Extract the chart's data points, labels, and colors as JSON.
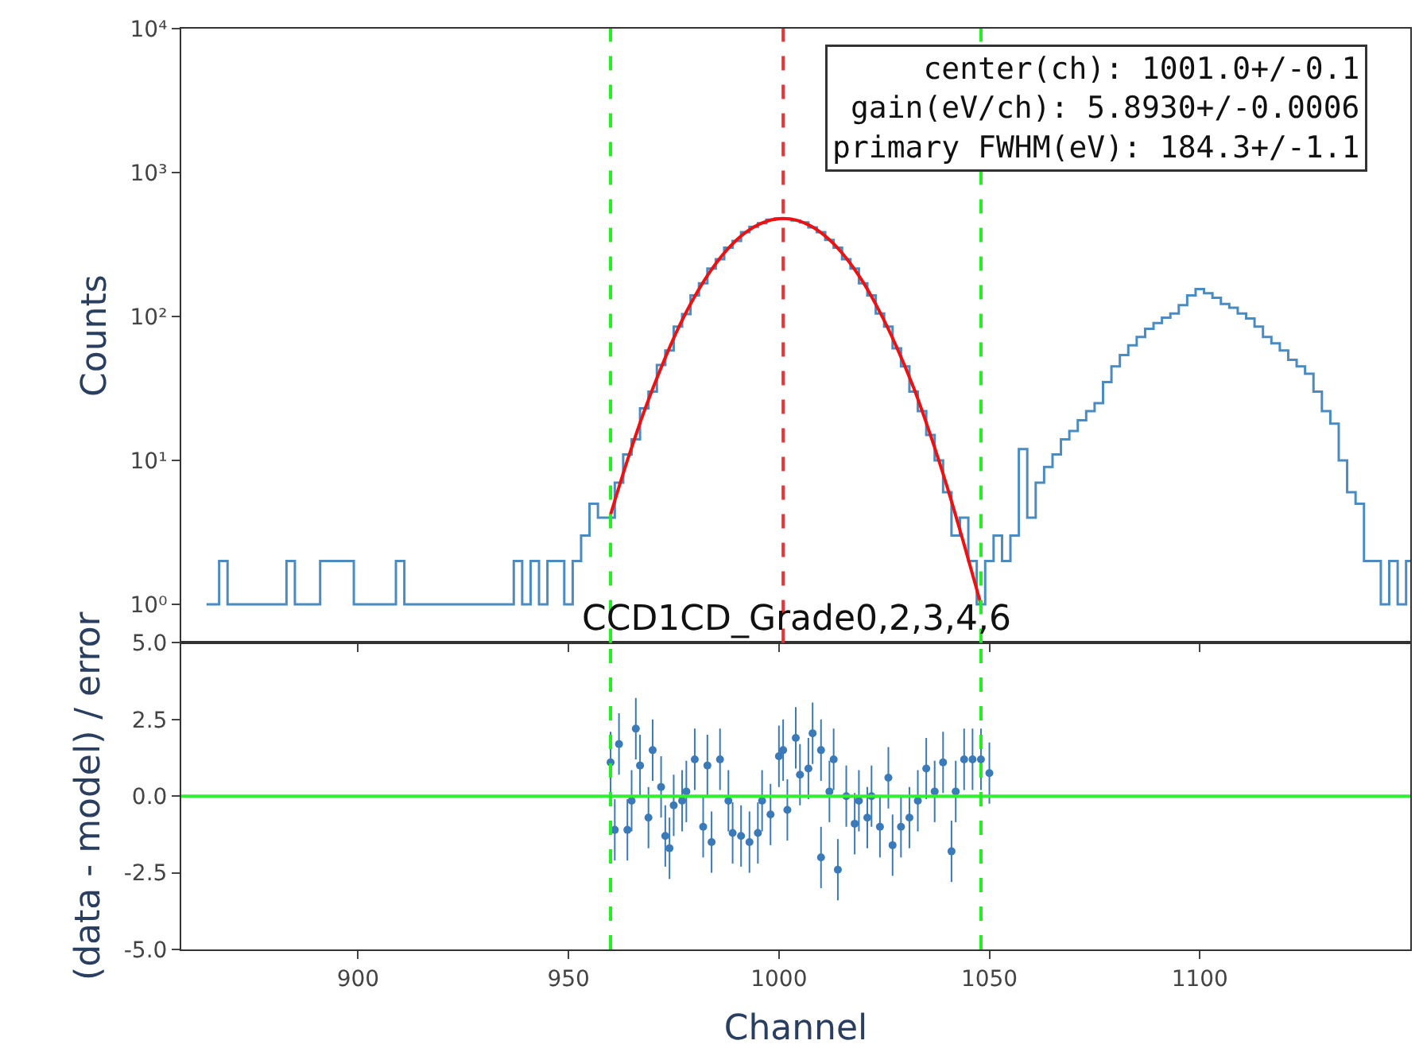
{
  "chart_data": [
    {
      "type": "step",
      "ylabel": "Counts",
      "log": "y",
      "tick_labels": "y",
      "grid": false,
      "xlim": [
        858,
        1150
      ],
      "xticks": [
        900,
        950,
        1000,
        1050,
        1100
      ],
      "ylim": [
        0.54,
        10000
      ],
      "yticks": [
        {
          "value": 1,
          "label": "10⁰"
        },
        {
          "value": 10,
          "label": "10¹"
        },
        {
          "value": 100,
          "label": "10²"
        },
        {
          "value": 1000,
          "label": "10³"
        },
        {
          "value": 10000,
          "label": "10⁴"
        }
      ],
      "annotations": [
        "center(ch): 1001.0+/-0.1\ngain(eV/ch): 5.8930+/-0.0006\nprimary FWHM(eV): 184.3+/-1.1"
      ],
      "ref_lines": [
        {
          "axis": "x",
          "value": 960,
          "color": "#22ee22",
          "line_style": "dashed"
        },
        {
          "axis": "x",
          "value": 1048,
          "color": "#22ee22",
          "line_style": "dashed"
        },
        {
          "axis": "x",
          "value": 1001,
          "color": "#ee3333",
          "line_style": "dashed"
        }
      ],
      "series": [
        {
          "type": "step",
          "color": "#4a8bc2",
          "x": [
            864,
            866,
            868,
            870,
            874,
            876,
            880,
            882,
            884,
            886,
            896,
            902,
            904,
            906,
            908,
            910,
            912,
            914,
            916,
            920,
            922,
            926,
            934,
            936,
            938,
            940,
            942,
            944,
            946,
            948,
            950,
            952,
            954,
            956,
            958,
            960,
            962,
            964,
            966,
            968,
            970,
            972,
            974,
            976,
            978,
            980,
            982,
            984,
            986,
            988,
            990,
            992,
            994,
            996,
            998,
            1000,
            1002,
            1004,
            1006,
            1008,
            1010,
            1012,
            1014,
            1016,
            1018,
            1020,
            1022,
            1024,
            1026,
            1028,
            1030,
            1032,
            1034,
            1036,
            1038,
            1040,
            1042,
            1044,
            1046,
            1048,
            1050,
            1052,
            1054,
            1056,
            1058,
            1060,
            1062,
            1064,
            1066,
            1068,
            1070,
            1072,
            1074,
            1076,
            1078,
            1080,
            1082,
            1084,
            1086,
            1088,
            1090,
            1092,
            1094,
            1096,
            1098,
            1100,
            1102,
            1104,
            1106,
            1108,
            1110,
            1112,
            1114,
            1116,
            1118,
            1120,
            1122,
            1124,
            1126,
            1128,
            1130,
            1132,
            1134,
            1136,
            1138,
            1140,
            1142,
            1144,
            1146,
            1148,
            1150
          ],
          "values": [
            1,
            1,
            2,
            1,
            1,
            1,
            1,
            1,
            2,
            1,
            2,
            1,
            1,
            1,
            1,
            2,
            1,
            1,
            1,
            1,
            1,
            1,
            1,
            1,
            2,
            1,
            2,
            1,
            2,
            2,
            1,
            2,
            3,
            5,
            4,
            4,
            7,
            11,
            14,
            23,
            30,
            46,
            58,
            85,
            104,
            140,
            170,
            215,
            250,
            300,
            335,
            385,
            420,
            445,
            470,
            480,
            476,
            465,
            450,
            415,
            385,
            340,
            300,
            250,
            215,
            170,
            140,
            105,
            85,
            60,
            45,
            30,
            22,
            15,
            10,
            6,
            3,
            4,
            2,
            1,
            2,
            3,
            2,
            3,
            12,
            4,
            7,
            9,
            11,
            14,
            16,
            19,
            22,
            25,
            35,
            45,
            54,
            63,
            72,
            82,
            90,
            98,
            105,
            120,
            140,
            155,
            145,
            135,
            122,
            115,
            105,
            97,
            85,
            72,
            65,
            58,
            50,
            45,
            40,
            30,
            22,
            18,
            10,
            6,
            5,
            2,
            2,
            1,
            2,
            1,
            2
          ]
        },
        {
          "type": "line",
          "color": "#ee1111",
          "x": [
            960,
            964,
            968,
            972,
            976,
            980,
            984,
            988,
            992,
            996,
            1000,
            1004,
            1008,
            1012,
            1016,
            1020,
            1024,
            1028,
            1032,
            1036,
            1040,
            1044,
            1048
          ],
          "values": [
            4.2,
            10,
            22,
            44,
            82,
            138,
            212,
            298,
            382,
            447,
            478,
            468,
            418,
            341,
            254,
            173,
            107,
            61,
            32,
            15,
            6.5,
            2.6,
            1
          ]
        }
      ]
    },
    {
      "type": "scatter",
      "title": "CCD1CD_Grade0,2,3,4,6",
      "xlabel": "Channel",
      "ylabel": "(data - model) / error",
      "grid": false,
      "marker": "circle",
      "xlim": [
        858,
        1150
      ],
      "xticks": [
        900,
        950,
        1000,
        1050,
        1100
      ],
      "ylim": [
        -5,
        5
      ],
      "yticks": [
        {
          "value": -5,
          "label": "-5.0"
        },
        {
          "value": -2.5,
          "label": "-2.5"
        },
        {
          "value": 0,
          "label": "0.0"
        },
        {
          "value": 2.5,
          "label": "2.5"
        },
        {
          "value": 5,
          "label": "5.0"
        }
      ],
      "ref_lines": [
        {
          "axis": "y",
          "value": 0,
          "color": "#33ee33",
          "line_style": "solid"
        },
        {
          "axis": "x",
          "value": 960,
          "color": "#22ee22",
          "line_style": "dashed"
        },
        {
          "axis": "x",
          "value": 1048,
          "color": "#22ee22",
          "line_style": "dashed"
        }
      ],
      "series": [
        {
          "color": "#3a7ab8",
          "x": [
            960,
            961,
            962,
            964,
            965,
            966,
            967,
            969,
            970,
            972,
            973,
            974,
            975,
            977,
            978,
            980,
            982,
            983,
            984,
            986,
            988,
            989,
            991,
            993,
            995,
            996,
            998,
            1000,
            1001,
            1002,
            1004,
            1005,
            1007,
            1008,
            1010,
            1010,
            1012,
            1013,
            1014,
            1016,
            1018,
            1019,
            1021,
            1022,
            1024,
            1026,
            1027,
            1029,
            1031,
            1033,
            1035,
            1037,
            1039,
            1041,
            1042,
            1044,
            1046,
            1048,
            1050
          ],
          "values": [
            1.1,
            -1.1,
            1.7,
            -1.1,
            -0.15,
            2.2,
            1.0,
            -0.7,
            1.5,
            0.3,
            -1.3,
            -1.7,
            -0.3,
            -0.15,
            0.15,
            1.2,
            -1.0,
            1.0,
            -1.5,
            1.2,
            -0.15,
            -1.2,
            -1.3,
            -1.5,
            -1.2,
            -0.15,
            -0.6,
            1.3,
            1.5,
            -0.45,
            1.9,
            0.7,
            0.9,
            2.05,
            -2.0,
            1.5,
            0.15,
            1.2,
            -2.4,
            0,
            -0.9,
            -0.15,
            -0.7,
            0,
            -1.0,
            0.6,
            -1.6,
            -1.0,
            -0.7,
            -0.15,
            0.9,
            0.15,
            1.1,
            -1.8,
            0.15,
            1.2,
            1.2,
            1.2,
            0.75
          ],
          "errors": [
            1,
            1,
            1,
            1,
            1,
            1,
            1,
            1,
            1,
            1,
            1,
            1,
            1,
            1,
            1,
            1,
            1,
            1,
            1,
            1,
            1,
            1,
            1,
            1,
            1,
            1,
            1,
            1,
            1,
            1,
            1,
            1,
            1,
            1,
            1,
            1,
            1,
            1,
            1,
            1,
            1,
            1,
            1,
            1,
            1,
            1,
            1,
            1,
            1,
            1,
            1,
            1,
            1,
            1,
            1,
            1,
            1,
            1,
            1
          ]
        }
      ]
    }
  ]
}
